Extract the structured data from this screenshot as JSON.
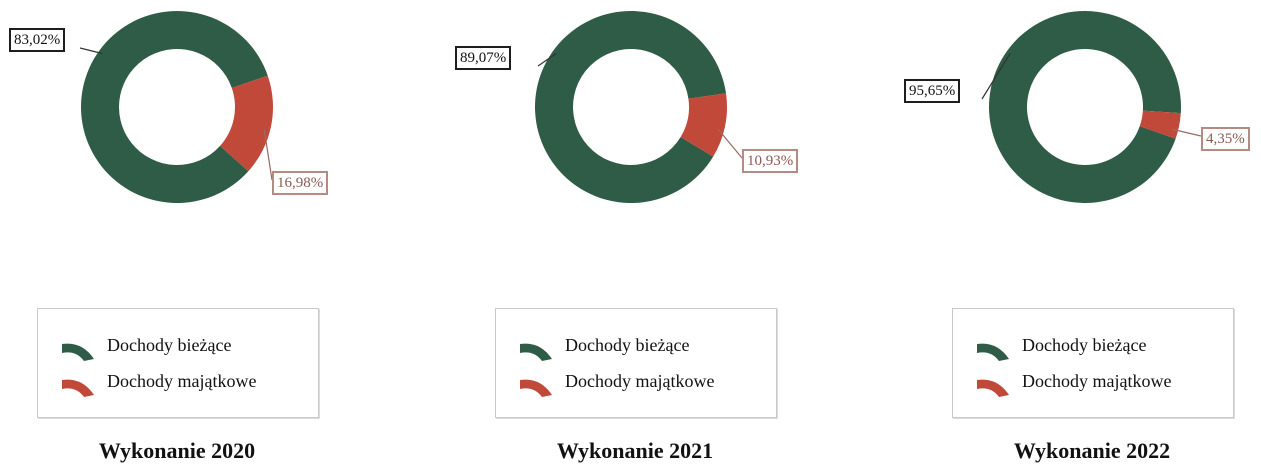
{
  "colors": {
    "current": "#2f5c46",
    "capital": "#c0493a"
  },
  "legend": {
    "current_label": "Dochody bieżące",
    "capital_label": "Dochody majątkowe"
  },
  "chart_data": [
    {
      "type": "pie",
      "title": "Wykonanie 2020",
      "categories": [
        "Dochody bieżące",
        "Dochody majątkowe"
      ],
      "values": [
        83.02,
        16.98
      ],
      "value_labels": [
        "83,02%",
        "16,98%"
      ]
    },
    {
      "type": "pie",
      "title": "Wykonanie 2021",
      "categories": [
        "Dochody bieżące",
        "Dochody majątkowe"
      ],
      "values": [
        89.07,
        10.93
      ],
      "value_labels": [
        "89,07%",
        "10,93%"
      ]
    },
    {
      "type": "pie",
      "title": "Wykonanie 2022",
      "categories": [
        "Dochody bieżące",
        "Dochody majątkowe"
      ],
      "values": [
        95.65,
        4.35
      ],
      "value_labels": [
        "95,65%",
        "4,35%"
      ]
    }
  ]
}
